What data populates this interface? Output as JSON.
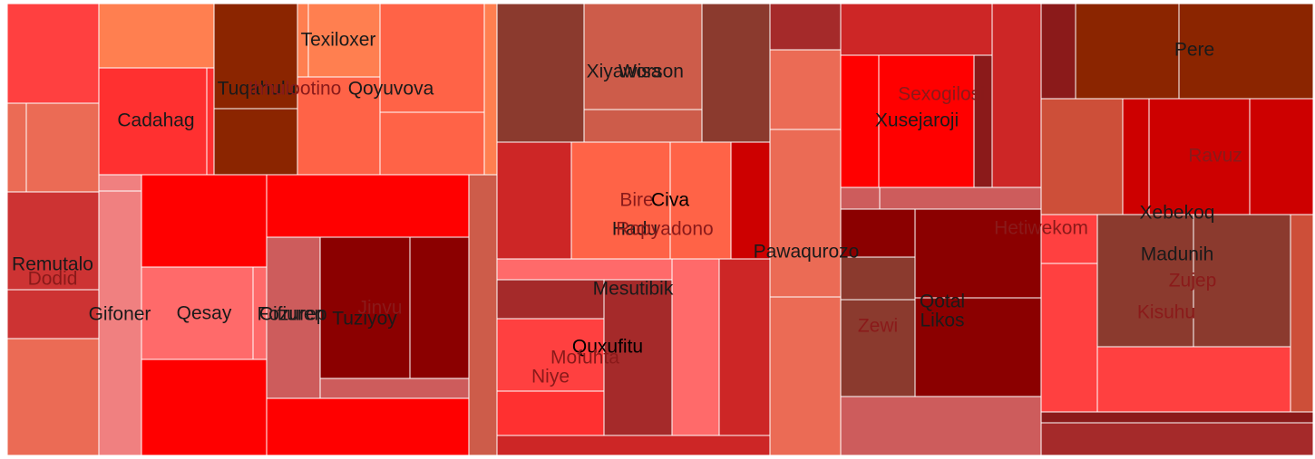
{
  "chart_data": {
    "type": "treemap",
    "title": "",
    "labels": [
      {
        "text": "Texiloxer",
        "color": "#1a1a1a"
      },
      {
        "text": "Tuqahulu",
        "color": "#1a1a1a"
      },
      {
        "text": "Ihhulootino",
        "color": "#8a1a1a"
      },
      {
        "text": "Qoyuvova",
        "color": "#1a1a1a"
      },
      {
        "text": "Cadahag",
        "color": "#1a1a1a"
      },
      {
        "text": "Remutalo",
        "color": "#1a1a1a"
      },
      {
        "text": "Dodid",
        "color": "#8a1a1a"
      },
      {
        "text": "Gifoner",
        "color": "#1a1a1a"
      },
      {
        "text": "Qesay",
        "color": "#1a1a1a"
      },
      {
        "text": "Cifiuren",
        "color": "#1a1a1a"
      },
      {
        "text": "Fozurep",
        "color": "#1a1a1a"
      },
      {
        "text": "Tuziyoy",
        "color": "#1a1a1a"
      },
      {
        "text": "Jinvu",
        "color": "#8a1a1a"
      },
      {
        "text": "Xiyawisa",
        "color": "#1a1a1a"
      },
      {
        "text": "Worson",
        "color": "#1a1a1a"
      },
      {
        "text": "Bire",
        "color": "#8a1a1a"
      },
      {
        "text": "Civa",
        "color": "#000000"
      },
      {
        "text": "Hadu",
        "color": "#1a1a1a"
      },
      {
        "text": "Ropyadono",
        "color": "#8a1a1a"
      },
      {
        "text": "Pawaqurozo",
        "color": "#1a1a1a"
      },
      {
        "text": "Mesutibik",
        "color": "#1a1a1a"
      },
      {
        "text": "Quxufitu",
        "color": "#000000"
      },
      {
        "text": "Mofuhta",
        "color": "#8a1a1a"
      },
      {
        "text": "Niye",
        "color": "#8a1a1a"
      },
      {
        "text": "Sexogilosi",
        "color": "#8a1a1a"
      },
      {
        "text": "Xusejaroji",
        "color": "#1a1a1a"
      },
      {
        "text": "Hetiwekom",
        "color": "#8a1a1a"
      },
      {
        "text": "Qotal",
        "color": "#1a1a1a"
      },
      {
        "text": "Likos",
        "color": "#1a1a1a"
      },
      {
        "text": "Zewi",
        "color": "#8a1a1a"
      },
      {
        "text": "Pere",
        "color": "#1a1a1a"
      },
      {
        "text": "Ravuz",
        "color": "#8a1a1a"
      },
      {
        "text": "Xebekoq",
        "color": "#1a1a1a"
      },
      {
        "text": "Madunih",
        "color": "#1a1a1a"
      },
      {
        "text": "Zujep",
        "color": "#8a1a1a"
      },
      {
        "text": "Kisuhu",
        "color": "#8a1a1a"
      }
    ]
  }
}
